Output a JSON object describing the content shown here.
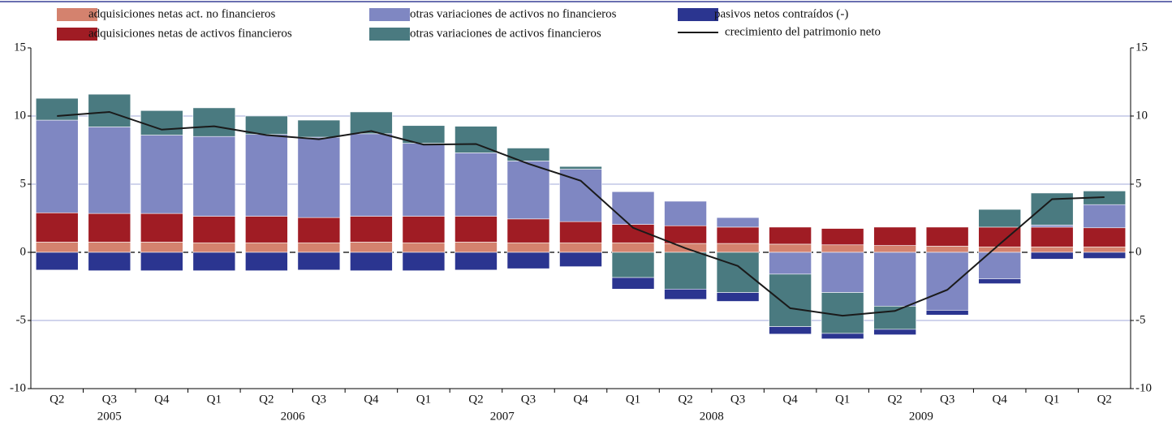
{
  "chart_data": {
    "type": "stacked_bar_line",
    "categories": [
      "Q2",
      "Q3",
      "Q4",
      "Q1",
      "Q2",
      "Q3",
      "Q4",
      "Q1",
      "Q2",
      "Q3",
      "Q4",
      "Q1",
      "Q2",
      "Q3",
      "Q4",
      "Q1",
      "Q2",
      "Q3",
      "Q4",
      "Q1",
      "Q2"
    ],
    "year_labels": [
      "2005",
      "2006",
      "2007",
      "2008",
      "2009"
    ],
    "ylim": [
      -10,
      15
    ],
    "yticks": [
      -10,
      -5,
      0,
      5,
      10,
      15
    ],
    "grid": true,
    "series": [
      {
        "name": "adquisiciones netas act. no financieros",
        "color": "#d4826e",
        "values": [
          0.75,
          0.75,
          0.75,
          0.7,
          0.7,
          0.7,
          0.75,
          0.7,
          0.75,
          0.7,
          0.7,
          0.7,
          0.65,
          0.65,
          0.6,
          0.55,
          0.5,
          0.45,
          0.4,
          0.4,
          0.4
        ]
      },
      {
        "name": "adquisiciones netas de activos financieros",
        "color": "#a01c24",
        "values": [
          2.15,
          2.1,
          2.1,
          1.95,
          1.95,
          1.85,
          1.9,
          1.95,
          1.9,
          1.75,
          1.55,
          1.35,
          1.3,
          1.2,
          1.25,
          1.2,
          1.35,
          1.4,
          1.45,
          1.45,
          1.4
        ]
      },
      {
        "name": "otras variaciones de activos no financieros",
        "color": "#7f87c2",
        "values": [
          6.8,
          6.35,
          5.75,
          5.85,
          6.0,
          5.9,
          6.05,
          5.35,
          4.65,
          4.25,
          3.85,
          2.4,
          1.8,
          0.7,
          -1.6,
          -2.95,
          -3.95,
          -4.25,
          -1.95,
          0.15,
          1.7
        ]
      },
      {
        "name": "otras variaciones de activos financieros",
        "color": "#4a7a80",
        "values": [
          1.6,
          2.4,
          1.8,
          2.1,
          1.35,
          1.25,
          1.6,
          1.3,
          1.95,
          0.95,
          0.2,
          -1.85,
          -2.7,
          -2.95,
          -3.85,
          -3.0,
          -1.7,
          0,
          1.3,
          2.35,
          1.0
        ]
      },
      {
        "name": "pasivos netos contraídos (-)",
        "color": "#2b3590",
        "values": [
          -1.3,
          -1.35,
          -1.35,
          -1.35,
          -1.35,
          -1.3,
          -1.35,
          -1.35,
          -1.3,
          -1.2,
          -1.05,
          -0.85,
          -0.75,
          -0.65,
          -0.55,
          -0.4,
          -0.4,
          -0.35,
          -0.35,
          -0.5,
          -0.45
        ]
      }
    ],
    "line": {
      "name": "crecimiento del patrimonio neto",
      "color": "#1a1a1a",
      "values": [
        10.0,
        10.3,
        9.0,
        9.25,
        8.6,
        8.3,
        8.9,
        7.9,
        7.95,
        6.5,
        5.25,
        1.8,
        0.3,
        -1.0,
        -4.1,
        -4.65,
        -4.3,
        -2.75,
        0.6,
        3.9,
        4.05
      ]
    }
  }
}
